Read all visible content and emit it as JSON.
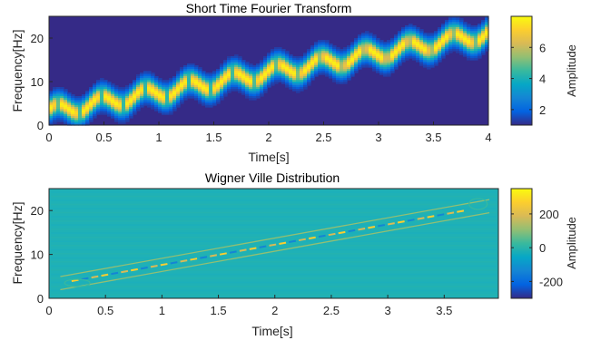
{
  "chart_data": [
    {
      "type": "heatmap",
      "title": "Short Time Fourier Transform",
      "xlabel": "Time[s]",
      "ylabel": "Frequency[Hz]",
      "xlim": [
        0,
        4
      ],
      "ylim": [
        0,
        25
      ],
      "xticks": [
        0,
        0.5,
        1,
        1.5,
        2,
        2.5,
        3,
        3.5,
        4
      ],
      "xtick_labels": [
        "0",
        "0.5",
        "1",
        "1.5",
        "2",
        "2.5",
        "3",
        "3.5",
        "4"
      ],
      "yticks": [
        0,
        10,
        20
      ],
      "ytick_labels": [
        "0",
        "10",
        "20"
      ],
      "colorbar": {
        "label": "Amplitude",
        "range": [
          1,
          8
        ],
        "ticks": [
          2,
          4,
          6
        ],
        "tick_labels": [
          "2",
          "4",
          "6"
        ],
        "colormap": "parula"
      },
      "signal": {
        "description_of_ridge": "linear chirp with sinusoidal frequency modulation",
        "center_freq_start_hz": 3,
        "center_freq_end_hz": 21,
        "modulation_depth_hz": 1.5,
        "modulation_cycles": 10,
        "peak_amplitude": 7.8,
        "background_amplitude": 1.1
      }
    },
    {
      "type": "heatmap",
      "title": "Wigner Ville Distribution",
      "xlabel": "Time[s]",
      "ylabel": "Frequency[Hz]",
      "xlim": [
        0,
        3.98
      ],
      "ylim": [
        0,
        25
      ],
      "xticks": [
        0,
        0.5,
        1,
        1.5,
        2,
        2.5,
        3,
        3.5
      ],
      "xtick_labels": [
        "0",
        "0.5",
        "1",
        "1.5",
        "2",
        "2.5",
        "3",
        "3.5"
      ],
      "yticks": [
        0,
        10,
        20
      ],
      "ytick_labels": [
        "0",
        "10",
        "20"
      ],
      "colorbar": {
        "label": "Amplitude",
        "range": [
          -300,
          350
        ],
        "ticks": [
          200,
          0,
          -200
        ],
        "tick_labels": [
          "200",
          "0",
          "-200"
        ],
        "colormap": "parula"
      },
      "signal": {
        "center_freq_start_hz": 3,
        "center_freq_end_hz": 21,
        "side_line_offset_hz": 1.5,
        "background_value": 0
      }
    }
  ],
  "colors": {
    "parula": [
      "#352a87",
      "#0363e1",
      "#1485d4",
      "#06a7c6",
      "#38b99e",
      "#92bf73",
      "#d9ba56",
      "#fcce2e",
      "#f9fb0e"
    ]
  }
}
